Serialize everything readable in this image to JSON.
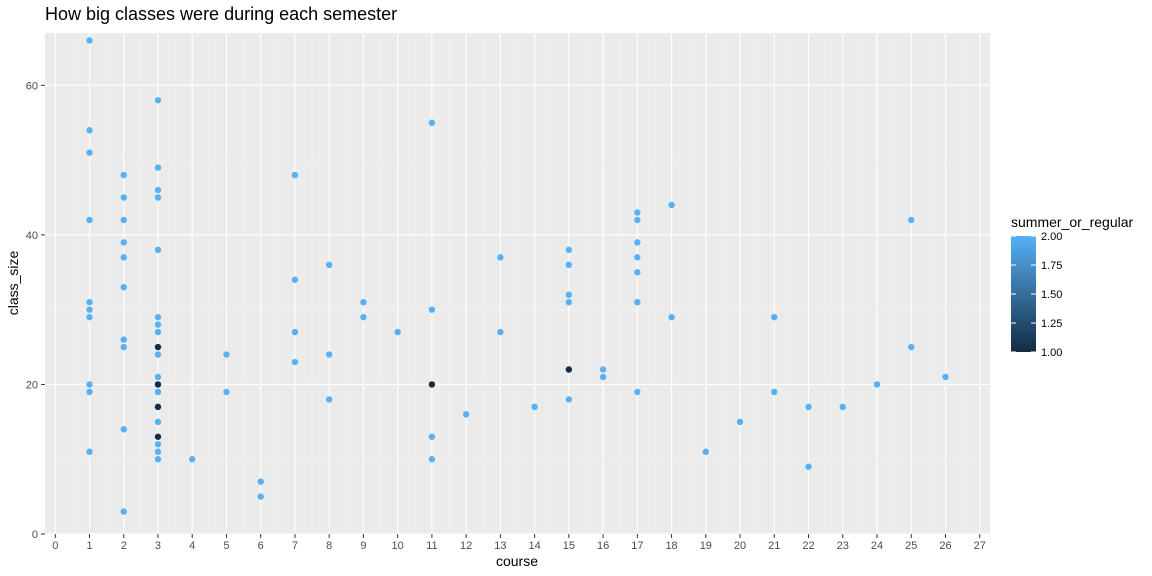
{
  "chart_data": {
    "type": "scatter",
    "title": "How big classes were during each semester",
    "xlabel": "course",
    "ylabel": "class_size",
    "xlim": [
      -0.3,
      27.3
    ],
    "ylim": [
      0,
      67
    ],
    "x_ticks": [
      0,
      1,
      2,
      3,
      4,
      5,
      6,
      7,
      8,
      9,
      10,
      11,
      12,
      13,
      14,
      15,
      16,
      17,
      18,
      19,
      20,
      21,
      22,
      23,
      24,
      25,
      26,
      27
    ],
    "y_ticks": [
      0,
      20,
      40,
      60
    ],
    "grid": true,
    "legend": {
      "title": "summer_or_regular",
      "position": "right",
      "labels": [
        "2.00",
        "1.75",
        "1.50",
        "1.25",
        "1.00"
      ],
      "values": [
        2.0,
        1.75,
        1.5,
        1.25,
        1.0
      ],
      "low_color": "#132B43",
      "high_color": "#56B1F7"
    },
    "colors": {
      "panel_background": "#EBEBEB",
      "grid_major": "#FFFFFF",
      "grid_minor": "#F5F5F5"
    },
    "points": [
      {
        "x": 1,
        "y": 66,
        "c": 2
      },
      {
        "x": 1,
        "y": 54,
        "c": 2
      },
      {
        "x": 1,
        "y": 51,
        "c": 2
      },
      {
        "x": 1,
        "y": 42,
        "c": 2
      },
      {
        "x": 1,
        "y": 31,
        "c": 2
      },
      {
        "x": 1,
        "y": 30,
        "c": 2
      },
      {
        "x": 1,
        "y": 29,
        "c": 2
      },
      {
        "x": 1,
        "y": 20,
        "c": 2
      },
      {
        "x": 1,
        "y": 19,
        "c": 2
      },
      {
        "x": 1,
        "y": 11,
        "c": 2
      },
      {
        "x": 2,
        "y": 48,
        "c": 2
      },
      {
        "x": 2,
        "y": 45,
        "c": 2
      },
      {
        "x": 2,
        "y": 42,
        "c": 2
      },
      {
        "x": 2,
        "y": 39,
        "c": 2
      },
      {
        "x": 2,
        "y": 37,
        "c": 2
      },
      {
        "x": 2,
        "y": 33,
        "c": 2
      },
      {
        "x": 2,
        "y": 26,
        "c": 2
      },
      {
        "x": 2,
        "y": 25,
        "c": 2
      },
      {
        "x": 2,
        "y": 14,
        "c": 2
      },
      {
        "x": 2,
        "y": 3,
        "c": 2
      },
      {
        "x": 3,
        "y": 58,
        "c": 2
      },
      {
        "x": 3,
        "y": 49,
        "c": 2
      },
      {
        "x": 3,
        "y": 46,
        "c": 2
      },
      {
        "x": 3,
        "y": 45,
        "c": 2
      },
      {
        "x": 3,
        "y": 38,
        "c": 2
      },
      {
        "x": 3,
        "y": 29,
        "c": 2
      },
      {
        "x": 3,
        "y": 28,
        "c": 2
      },
      {
        "x": 3,
        "y": 27,
        "c": 2
      },
      {
        "x": 3,
        "y": 25,
        "c": 1
      },
      {
        "x": 3,
        "y": 24,
        "c": 2
      },
      {
        "x": 3,
        "y": 21,
        "c": 2
      },
      {
        "x": 3,
        "y": 20,
        "c": 1
      },
      {
        "x": 3,
        "y": 19,
        "c": 2
      },
      {
        "x": 3,
        "y": 17,
        "c": 1
      },
      {
        "x": 3,
        "y": 15,
        "c": 2
      },
      {
        "x": 3,
        "y": 13,
        "c": 1
      },
      {
        "x": 3,
        "y": 12,
        "c": 2
      },
      {
        "x": 3,
        "y": 11,
        "c": 2
      },
      {
        "x": 3,
        "y": 10,
        "c": 2
      },
      {
        "x": 4,
        "y": 10,
        "c": 2
      },
      {
        "x": 5,
        "y": 24,
        "c": 2
      },
      {
        "x": 5,
        "y": 19,
        "c": 2
      },
      {
        "x": 6,
        "y": 7,
        "c": 2
      },
      {
        "x": 6,
        "y": 5,
        "c": 2
      },
      {
        "x": 7,
        "y": 48,
        "c": 2
      },
      {
        "x": 7,
        "y": 34,
        "c": 2
      },
      {
        "x": 7,
        "y": 27,
        "c": 2
      },
      {
        "x": 7,
        "y": 23,
        "c": 2
      },
      {
        "x": 8,
        "y": 36,
        "c": 2
      },
      {
        "x": 8,
        "y": 24,
        "c": 2
      },
      {
        "x": 8,
        "y": 18,
        "c": 2
      },
      {
        "x": 9,
        "y": 31,
        "c": 2
      },
      {
        "x": 9,
        "y": 29,
        "c": 2
      },
      {
        "x": 10,
        "y": 27,
        "c": 2
      },
      {
        "x": 11,
        "y": 55,
        "c": 2
      },
      {
        "x": 11,
        "y": 30,
        "c": 2
      },
      {
        "x": 11,
        "y": 20,
        "c": 1
      },
      {
        "x": 11,
        "y": 13,
        "c": 2
      },
      {
        "x": 11,
        "y": 10,
        "c": 2
      },
      {
        "x": 12,
        "y": 16,
        "c": 2
      },
      {
        "x": 13,
        "y": 37,
        "c": 2
      },
      {
        "x": 13,
        "y": 27,
        "c": 2
      },
      {
        "x": 14,
        "y": 17,
        "c": 2
      },
      {
        "x": 15,
        "y": 38,
        "c": 2
      },
      {
        "x": 15,
        "y": 36,
        "c": 2
      },
      {
        "x": 15,
        "y": 32,
        "c": 2
      },
      {
        "x": 15,
        "y": 31,
        "c": 2
      },
      {
        "x": 15,
        "y": 22,
        "c": 1
      },
      {
        "x": 15,
        "y": 18,
        "c": 2
      },
      {
        "x": 16,
        "y": 22,
        "c": 2
      },
      {
        "x": 16,
        "y": 21,
        "c": 2
      },
      {
        "x": 17,
        "y": 43,
        "c": 2
      },
      {
        "x": 17,
        "y": 42,
        "c": 2
      },
      {
        "x": 17,
        "y": 39,
        "c": 2
      },
      {
        "x": 17,
        "y": 37,
        "c": 2
      },
      {
        "x": 17,
        "y": 35,
        "c": 2
      },
      {
        "x": 17,
        "y": 31,
        "c": 2
      },
      {
        "x": 17,
        "y": 19,
        "c": 2
      },
      {
        "x": 18,
        "y": 44,
        "c": 2
      },
      {
        "x": 18,
        "y": 29,
        "c": 2
      },
      {
        "x": 19,
        "y": 11,
        "c": 2
      },
      {
        "x": 20,
        "y": 15,
        "c": 2
      },
      {
        "x": 21,
        "y": 29,
        "c": 2
      },
      {
        "x": 21,
        "y": 19,
        "c": 2
      },
      {
        "x": 22,
        "y": 17,
        "c": 2
      },
      {
        "x": 22,
        "y": 9,
        "c": 2
      },
      {
        "x": 23,
        "y": 17,
        "c": 2
      },
      {
        "x": 24,
        "y": 20,
        "c": 2
      },
      {
        "x": 25,
        "y": 42,
        "c": 2
      },
      {
        "x": 25,
        "y": 25,
        "c": 2
      },
      {
        "x": 26,
        "y": 21,
        "c": 2
      }
    ]
  }
}
